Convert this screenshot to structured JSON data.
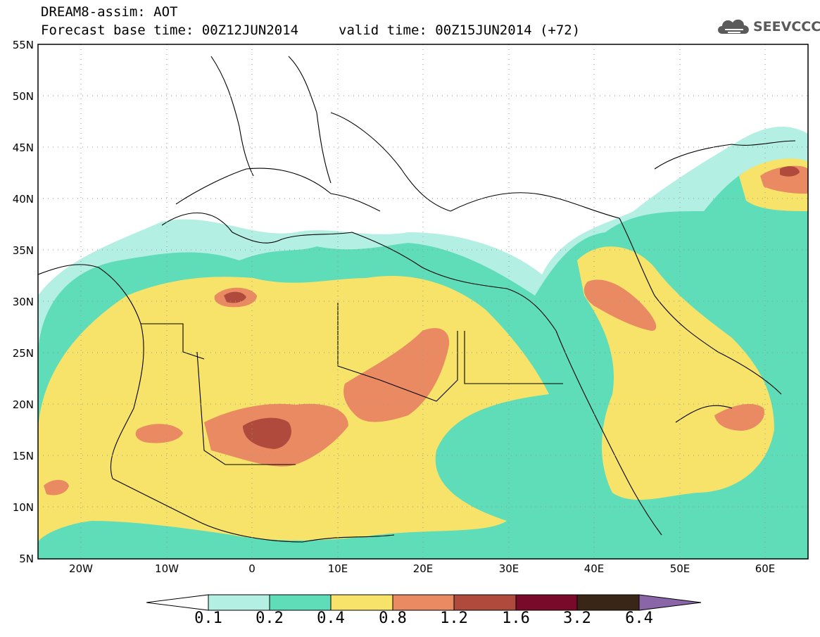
{
  "header": {
    "model_product": "DREAM8-assim: AOT",
    "forecast_base": "Forecast base time: 00Z12JUN2014",
    "valid_time": "valid time: 00Z15JUN2014 (+72)",
    "logo_text": "SEEVCCC"
  },
  "axes": {
    "lat_labels": [
      "55N",
      "50N",
      "45N",
      "40N",
      "35N",
      "30N",
      "25N",
      "20N",
      "15N",
      "10N",
      "5N"
    ],
    "lon_labels": [
      "20W",
      "10W",
      "0",
      "10E",
      "20E",
      "30E",
      "40E",
      "50E",
      "60E"
    ]
  },
  "colorbar": {
    "labels": [
      "0.1",
      "0.2",
      "0.4",
      "0.8",
      "1.2",
      "1.6",
      "3.2",
      "6.4"
    ],
    "colors": [
      "#b3efe2",
      "#5fdcb8",
      "#f7e36a",
      "#e98a62",
      "#b04a3c",
      "#7a0a2a",
      "#3a2616",
      "#8a66a8"
    ]
  },
  "colors": {
    "aot_0_1": "#b3efe2",
    "aot_0_2": "#5fdcb8",
    "aot_0_4": "#f7e36a",
    "aot_0_8": "#e98a62",
    "aot_1_2": "#b04a3c"
  }
}
